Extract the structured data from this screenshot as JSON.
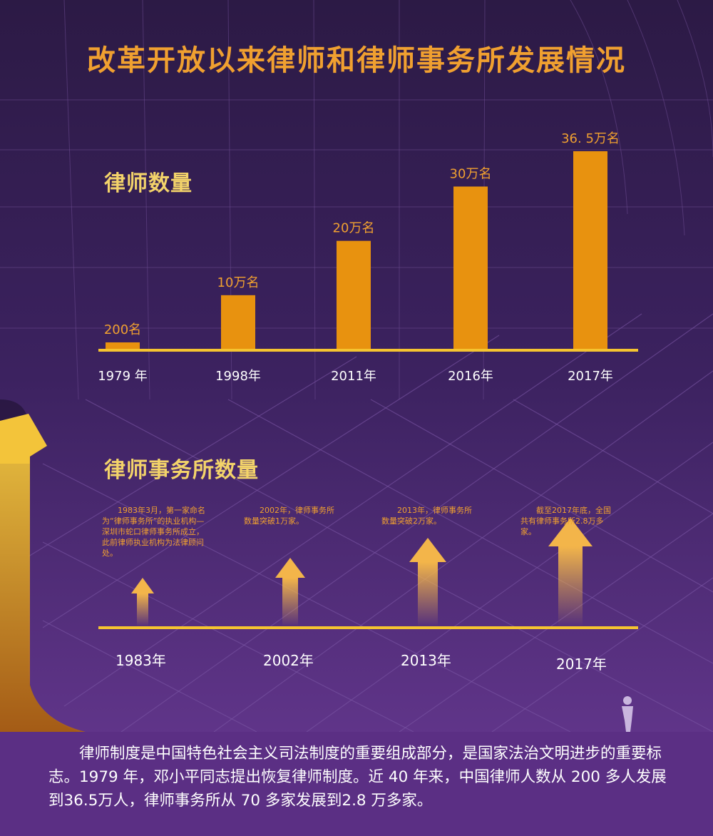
{
  "page": {
    "title": "改革开放以来律师和律师事务所发展情况"
  },
  "lawyers_section": {
    "title": "律师数量"
  },
  "firms_section": {
    "title": "律师事务所数量",
    "events": [
      {
        "year": "1983年",
        "note": "1983年3月，第一家命名为“律师事务所”的执业机构—深圳市蛇口律师事务所成立，此前律师执业机构为法律顾问处。",
        "arrow_level": 1
      },
      {
        "year": "2002年",
        "note": "2002年，律师事务所数量突破1万家。",
        "arrow_level": 2
      },
      {
        "year": "2013年",
        "note": "2013年，律师事务所数量突破2万家。",
        "arrow_level": 3
      },
      {
        "year": "2017年",
        "note": "截至2017年底，全国共有律师事务所2.8万多家。",
        "arrow_level": 4
      }
    ]
  },
  "summary": {
    "text": "律师制度是中国特色社会主义司法制度的重要组成部分，是国家法治文明进步的重要标志。1979 年，邓小平同志提出恢复律师制度。近 40 年来，中国律师人数从 200 多人发展到36.5万人，律师事务所从 70 多家发展到2.8 万多家。"
  },
  "colors": {
    "accent": "#f0a030",
    "bar": "#e8920f",
    "baseline": "#f5c430",
    "background": "#3a2157",
    "panel": "#5b2f84"
  },
  "chart_data": {
    "type": "bar",
    "title": "律师数量",
    "categories": [
      "1979 年",
      "1998年",
      "2011年",
      "2016年",
      "2017年"
    ],
    "values": [
      0.02,
      10,
      20,
      30,
      36.5
    ],
    "data_labels": [
      "200名",
      "10万名",
      "20万名",
      "30万名",
      "36. 5万名"
    ],
    "unit": "万名",
    "xlabel": "",
    "ylabel": "",
    "ylim": [
      0,
      36.5
    ],
    "grid": false
  }
}
